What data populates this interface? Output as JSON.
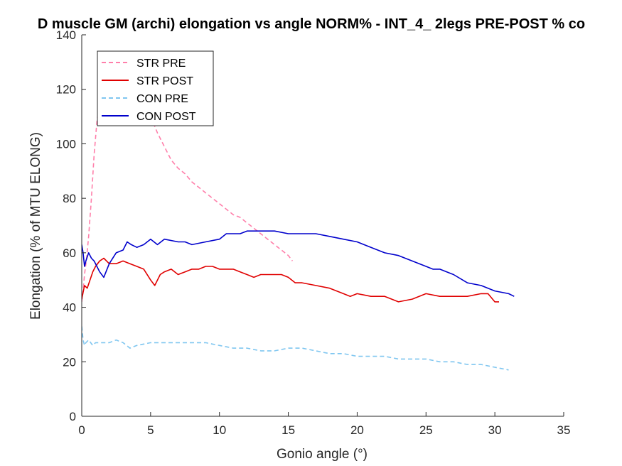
{
  "chart_data": {
    "type": "line",
    "title": "D muscle GM (archi) elongation vs angle NORM% - INT_4_ 2legs PRE-POST % co",
    "xlabel": "Gonio angle (°)",
    "ylabel": "Elongation (% of MTU ELONG)",
    "xlim": [
      0,
      35
    ],
    "ylim": [
      0,
      140
    ],
    "xticks": [
      0,
      5,
      10,
      15,
      20,
      25,
      30,
      35
    ],
    "yticks": [
      0,
      20,
      40,
      60,
      80,
      100,
      120,
      140
    ],
    "grid": false,
    "legend_position": "top-left",
    "series": [
      {
        "name": "STR PRE",
        "color": "#ff7faa",
        "dash": "dashed",
        "x": [
          0,
          0.1,
          0.2,
          0.35,
          0.5,
          0.7,
          0.9,
          1.1,
          1.3,
          1.6,
          2.0,
          2.5,
          3.0,
          3.5,
          4.0,
          4.5,
          5.0,
          5.5,
          6.0,
          6.5,
          7.0,
          7.5,
          8.0,
          8.5,
          9.0,
          9.5,
          10.0,
          10.5,
          11.0,
          11.5,
          12.0,
          12.5,
          13.0,
          13.5,
          14.0,
          14.5,
          15.0,
          15.3
        ],
        "y": [
          42,
          46,
          52,
          58,
          66,
          80,
          96,
          108,
          116,
          122,
          126,
          127,
          126,
          124,
          120,
          115,
          110,
          104,
          99,
          94,
          91,
          89,
          86,
          84,
          82,
          80,
          78,
          76,
          74,
          73,
          71,
          69,
          67,
          65,
          63,
          61,
          59,
          57
        ]
      },
      {
        "name": "STR POST",
        "color": "#e00000",
        "dash": "solid",
        "x": [
          0,
          0.2,
          0.4,
          0.6,
          0.8,
          1.0,
          1.3,
          1.6,
          2.0,
          2.5,
          3.0,
          3.5,
          4.0,
          4.5,
          5.0,
          5.3,
          5.7,
          6.0,
          6.5,
          7.0,
          7.5,
          8.0,
          8.5,
          9.0,
          9.5,
          10.0,
          10.5,
          11.0,
          11.5,
          12.0,
          12.5,
          13.0,
          13.5,
          14.0,
          14.5,
          15.0,
          15.5,
          16.0,
          17.0,
          18.0,
          19.0,
          19.5,
          20.0,
          21.0,
          22.0,
          23.0,
          24.0,
          25.0,
          26.0,
          27.0,
          28.0,
          29.0,
          29.5,
          30.0,
          30.3
        ],
        "y": [
          43,
          48,
          47,
          50,
          53,
          55,
          57,
          58,
          56,
          56,
          57,
          56,
          55,
          54,
          50,
          48,
          52,
          53,
          54,
          52,
          53,
          54,
          54,
          55,
          55,
          54,
          54,
          54,
          53,
          52,
          51,
          52,
          52,
          52,
          52,
          51,
          49,
          49,
          48,
          47,
          45,
          44,
          45,
          44,
          44,
          42,
          43,
          45,
          44,
          44,
          44,
          45,
          45,
          42,
          42
        ]
      },
      {
        "name": "CON PRE",
        "color": "#7fc6f0",
        "dash": "dashed",
        "x": [
          0,
          0.1,
          0.2,
          0.3,
          0.5,
          0.8,
          1.0,
          1.5,
          2.0,
          2.5,
          3.0,
          3.5,
          4.0,
          5.0,
          6.0,
          7.0,
          8.0,
          9.0,
          10.0,
          11.0,
          12.0,
          13.0,
          14.0,
          15.0,
          16.0,
          17.0,
          18.0,
          19.0,
          20.0,
          21.0,
          22.0,
          23.0,
          24.0,
          25.0,
          26.0,
          27.0,
          28.0,
          29.0,
          30.0,
          31.0
        ],
        "y": [
          33,
          28,
          26,
          27,
          28,
          26,
          27,
          27,
          27,
          28,
          27,
          25,
          26,
          27,
          27,
          27,
          27,
          27,
          26,
          25,
          25,
          24,
          24,
          25,
          25,
          24,
          23,
          23,
          22,
          22,
          22,
          21,
          21,
          21,
          20,
          20,
          19,
          19,
          18,
          17
        ]
      },
      {
        "name": "CON POST",
        "color": "#0000cc",
        "dash": "solid",
        "x": [
          0,
          0.1,
          0.2,
          0.3,
          0.5,
          0.7,
          0.9,
          1.1,
          1.3,
          1.6,
          2.0,
          2.5,
          3.0,
          3.3,
          3.6,
          4.0,
          4.5,
          5.0,
          5.5,
          6.0,
          7.0,
          7.5,
          8.0,
          9.0,
          10.0,
          10.5,
          11.0,
          11.5,
          12.0,
          13.0,
          14.0,
          15.0,
          16.0,
          16.5,
          17.0,
          18.0,
          19.0,
          20.0,
          21.0,
          22.0,
          23.0,
          24.0,
          25.0,
          25.5,
          26.0,
          27.0,
          28.0,
          29.0,
          30.0,
          31.0,
          31.4
        ],
        "y": [
          63,
          60,
          55,
          57,
          60,
          58,
          57,
          55,
          53,
          51,
          56,
          60,
          61,
          64,
          63,
          62,
          63,
          65,
          63,
          65,
          64,
          64,
          63,
          64,
          65,
          67,
          67,
          67,
          68,
          68,
          68,
          67,
          67,
          67,
          67,
          66,
          65,
          64,
          62,
          60,
          59,
          57,
          55,
          54,
          54,
          52,
          49,
          48,
          46,
          45,
          44
        ]
      }
    ]
  }
}
